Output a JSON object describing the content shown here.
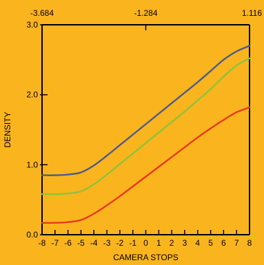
{
  "chart_data": {
    "type": "line",
    "xlabel": "CAMERA STOPS",
    "ylabel": "DENSITY",
    "xlim": [
      -8,
      8
    ],
    "ylim": [
      0,
      3
    ],
    "x_ticks": [
      -8,
      -7,
      -6,
      -5,
      -4,
      -3,
      -2,
      -1,
      0,
      1,
      2,
      3,
      4,
      5,
      6,
      7,
      8
    ],
    "x_tick_labels": [
      "-8",
      "-7",
      "-6",
      "-5",
      "-4",
      "-3",
      "-2",
      "-1",
      "0",
      "1",
      "2",
      "3",
      "4",
      "5",
      "6",
      "7",
      "8"
    ],
    "y_ticks": [
      0,
      1,
      2,
      3
    ],
    "y_tick_labels": [
      "0.0",
      "1.0",
      "2.0",
      "3.0"
    ],
    "top_axis": {
      "ticks": [
        -8,
        0,
        8
      ],
      "tick_labels": [
        "-3.684",
        "-1.284",
        "1.116"
      ]
    },
    "grid": false,
    "series": [
      {
        "color": "#4A5A8E",
        "x": [
          -8,
          -7,
          -6,
          -5,
          -4,
          -3,
          -2,
          -1,
          0,
          1,
          2,
          3,
          4,
          5,
          6,
          7,
          8
        ],
        "y": [
          0.85,
          0.85,
          0.86,
          0.89,
          0.99,
          1.13,
          1.28,
          1.43,
          1.58,
          1.73,
          1.88,
          2.03,
          2.18,
          2.34,
          2.5,
          2.62,
          2.7
        ]
      },
      {
        "color": "#8BC33A",
        "x": [
          -8,
          -7,
          -6,
          -5,
          -4,
          -3,
          -2,
          -1,
          0,
          1,
          2,
          3,
          4,
          5,
          6,
          7,
          8
        ],
        "y": [
          0.58,
          0.58,
          0.59,
          0.62,
          0.72,
          0.86,
          1.01,
          1.16,
          1.31,
          1.46,
          1.61,
          1.76,
          1.92,
          2.08,
          2.26,
          2.42,
          2.52
        ]
      },
      {
        "color": "#E8381C",
        "x": [
          -8,
          -7,
          -6,
          -5,
          -4,
          -3,
          -2,
          -1,
          0,
          1,
          2,
          3,
          4,
          5,
          6,
          7,
          8
        ],
        "y": [
          0.17,
          0.17,
          0.18,
          0.21,
          0.3,
          0.42,
          0.55,
          0.69,
          0.83,
          0.97,
          1.11,
          1.25,
          1.39,
          1.52,
          1.64,
          1.75,
          1.82
        ]
      }
    ]
  }
}
